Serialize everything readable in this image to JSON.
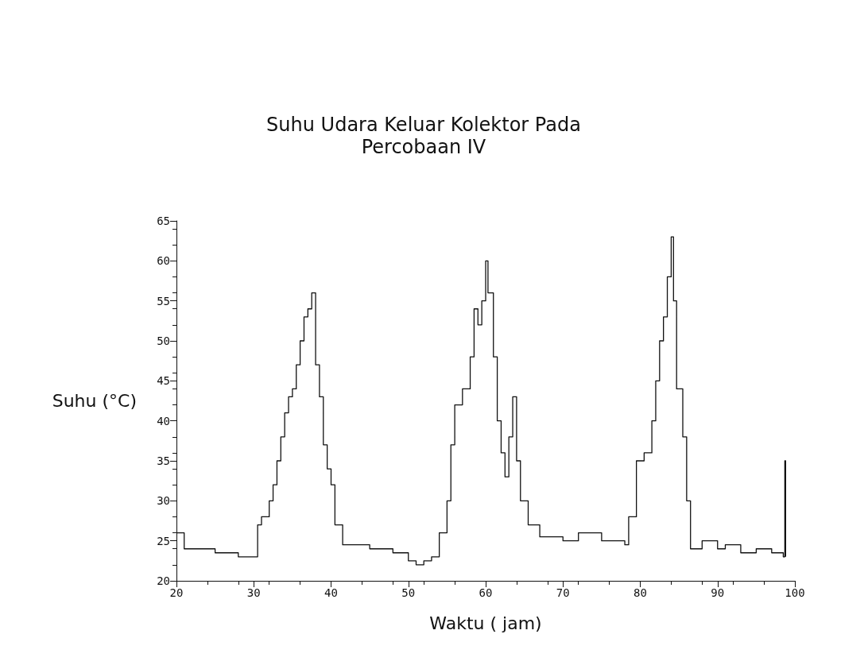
{
  "chart_data": {
    "type": "step",
    "title": "Suhu Udara Keluar Kolektor Pada\nPercobaan IV",
    "xlabel": "Waktu ( jam)",
    "ylabel": "Suhu (°C)",
    "xlim": [
      20,
      100
    ],
    "xticks": [
      20,
      30,
      40,
      50,
      60,
      70,
      80,
      90,
      100
    ],
    "ylim": [
      20,
      65
    ],
    "yticks": [
      20,
      25,
      30,
      35,
      40,
      45,
      50,
      55,
      60,
      65
    ],
    "grid": false,
    "marker": "none",
    "line_style": "solid",
    "series": [
      {
        "color": "#111111",
        "x": [
          20,
          21,
          22,
          25,
          28,
          30,
          30.5,
          31,
          32,
          32.5,
          33,
          33.5,
          34,
          34.5,
          35,
          35.5,
          36,
          36.5,
          37,
          37.5,
          38,
          38.5,
          39,
          39.5,
          40,
          40.5,
          41.5,
          45,
          48,
          50,
          51,
          52,
          53,
          54,
          55,
          55.5,
          56,
          57,
          58,
          58.5,
          59,
          59.5,
          60,
          60.3,
          61,
          61.5,
          62,
          62.5,
          63,
          63.5,
          64,
          64.5,
          65.5,
          67,
          70,
          72,
          75,
          78,
          78.5,
          79.5,
          80.5,
          81.5,
          82,
          82.5,
          83,
          83.5,
          84,
          84.3,
          84.7,
          85.5,
          86,
          86.5,
          88,
          90,
          91,
          93,
          95,
          97,
          98.5,
          98.7,
          98.8
        ],
        "values": [
          26,
          24,
          24,
          23.5,
          23,
          23,
          27,
          28,
          30,
          32,
          35,
          38,
          41,
          43,
          44,
          47,
          50,
          53,
          54,
          56,
          47,
          43,
          37,
          34,
          32,
          27,
          24.5,
          24,
          23.5,
          22.5,
          22,
          22.5,
          23,
          26,
          30,
          37,
          42,
          44,
          48,
          54,
          52,
          55,
          60,
          56,
          48,
          40,
          36,
          33,
          38,
          43,
          35,
          30,
          27,
          25.5,
          25,
          26,
          25,
          24.5,
          28,
          35,
          36,
          40,
          45,
          50,
          53,
          58,
          63,
          55,
          44,
          38,
          30,
          24,
          25,
          24,
          24.5,
          23.5,
          24,
          23.5,
          23,
          35,
          23
        ]
      }
    ]
  }
}
